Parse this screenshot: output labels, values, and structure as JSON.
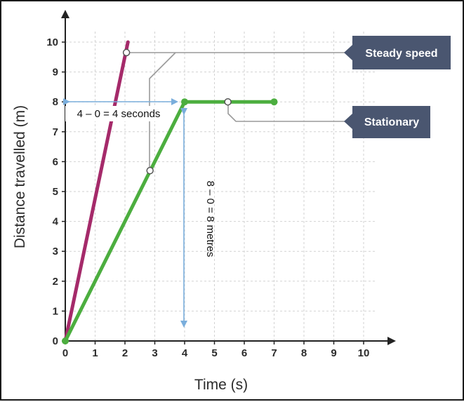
{
  "chart_data": {
    "type": "line",
    "title": "",
    "xlabel": "Time (s)",
    "ylabel": "Distance travelled (m)",
    "xlim": [
      0,
      10
    ],
    "ylim": [
      0,
      10
    ],
    "xticks": [
      "0",
      "1",
      "2",
      "3",
      "4",
      "5",
      "6",
      "7",
      "8",
      "9",
      "10"
    ],
    "yticks": [
      "0",
      "1",
      "2",
      "3",
      "4",
      "5",
      "6",
      "7",
      "8",
      "9",
      "10"
    ],
    "grid": true,
    "series": [
      {
        "color": "#a52a6a",
        "x": [
          0,
          2.1
        ],
        "y": [
          0,
          10
        ]
      },
      {
        "color": "#4cae3f",
        "x": [
          0,
          4,
          7
        ],
        "y": [
          0,
          8,
          8
        ]
      }
    ],
    "annotations": {
      "time_difference": "4 – 0 = 4 seconds",
      "distance_difference": "8 – 0 = 8 metres",
      "arrow_color": "#7aaedc"
    },
    "callouts": [
      {
        "label": "Steady speed",
        "color": "#4a5670"
      },
      {
        "label": "Stationary",
        "color": "#4a5670"
      }
    ]
  }
}
